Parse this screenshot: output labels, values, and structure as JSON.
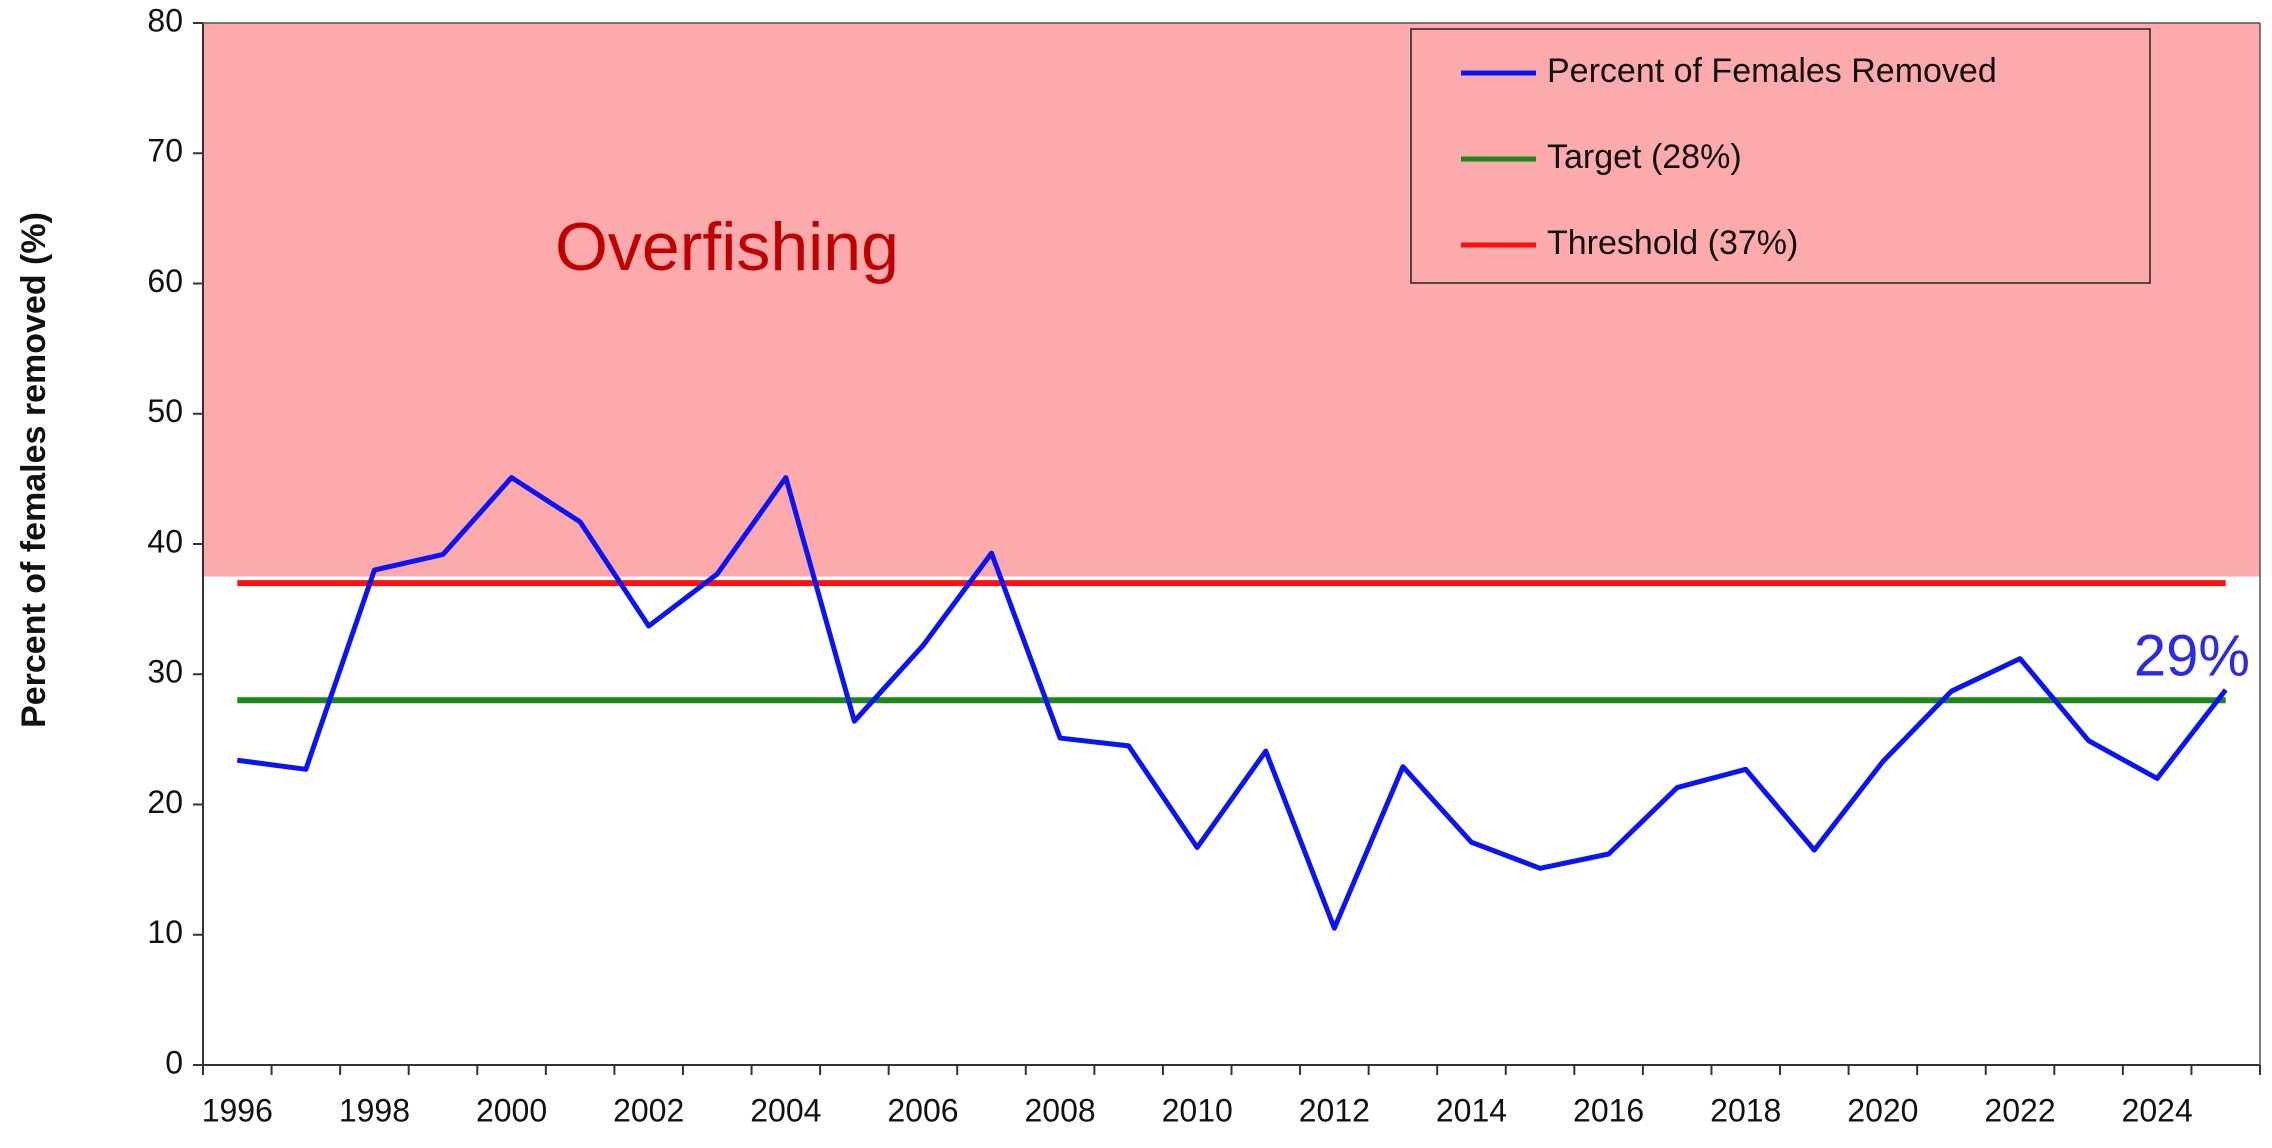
{
  "chart_data": {
    "type": "line",
    "y_label": "Percent of females removed (%)",
    "categories": [
      "1996",
      null,
      "1998",
      null,
      "2000",
      null,
      "2002",
      null,
      "2004",
      null,
      "2006",
      null,
      "2008",
      null,
      "2010",
      null,
      "2012",
      null,
      "2014",
      null,
      "2016",
      null,
      "2018",
      null,
      "2020",
      null,
      "2022",
      null,
      "2024",
      null
    ],
    "series": [
      {
        "name": "Percent of Females Removed",
        "color": "#0a14f5",
        "values": [
          23.4,
          22.7,
          38.0,
          39.2,
          45.1,
          41.7,
          33.7,
          37.7,
          45.1,
          26.4,
          32.2,
          39.3,
          25.1,
          24.5,
          16.7,
          24.1,
          10.5,
          22.9,
          17.1,
          15.1,
          16.2,
          21.3,
          22.7,
          16.5,
          23.3,
          28.7,
          31.2,
          24.9,
          22.0,
          28.8
        ]
      },
      {
        "name": "Target (28%)",
        "color": "#1a8a1a",
        "values": [
          28,
          28,
          28,
          28,
          28,
          28,
          28,
          28,
          28,
          28,
          28,
          28,
          28,
          28,
          28,
          28,
          28,
          28,
          28,
          28,
          28,
          28,
          28,
          28,
          28,
          28,
          28,
          28,
          28,
          28
        ]
      },
      {
        "name": "Threshold (37%)",
        "color": "#ff1010",
        "values": [
          37,
          37,
          37,
          37,
          37,
          37,
          37,
          37,
          37,
          37,
          37,
          37,
          37,
          37,
          37,
          37,
          37,
          37,
          37,
          37,
          37,
          37,
          37,
          37,
          37,
          37,
          37,
          37,
          37,
          37
        ]
      }
    ],
    "shade": {
      "label": "Overfishing",
      "from": 37.5,
      "to": 80,
      "color": "#fdaaac"
    },
    "annotation": "29%",
    "ylim": [
      0,
      80
    ],
    "yticks": [
      0,
      10,
      20,
      30,
      40,
      50,
      60,
      70,
      80
    ],
    "legend": "upper right"
  }
}
